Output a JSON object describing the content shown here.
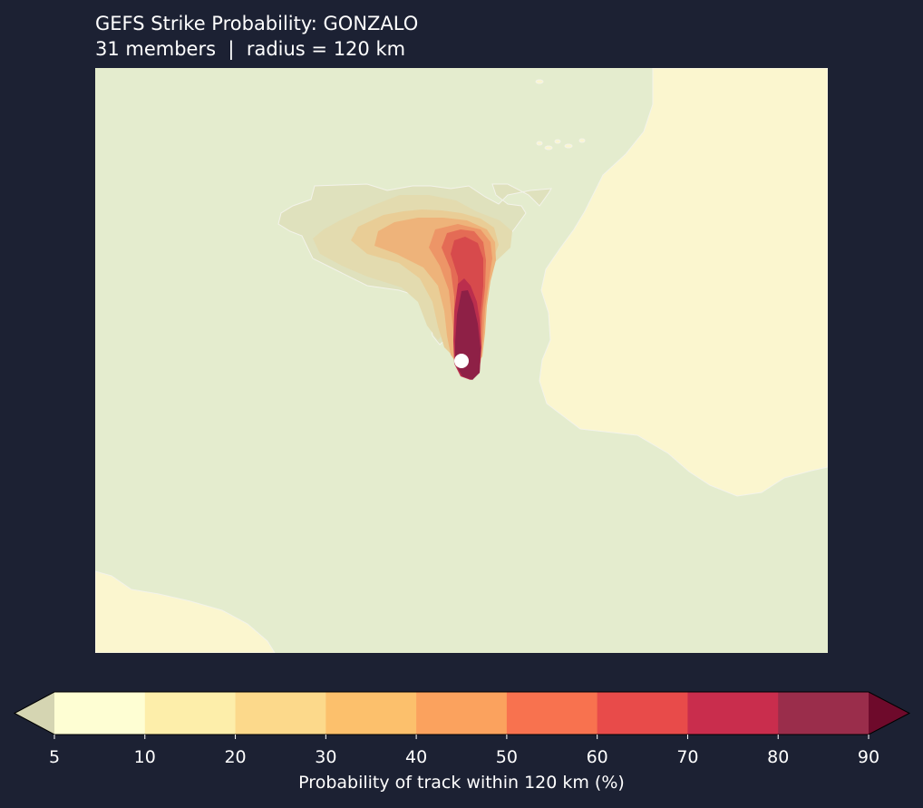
{
  "title": "GEFS Strike Probability: GONZALO",
  "subtitle": "31 members  |  radius = 120 km",
  "colorbar": {
    "label": "Probability of track within 120 km (%)",
    "ticks": [
      "5",
      "10",
      "20",
      "30",
      "40",
      "50",
      "60",
      "70",
      "80",
      "90"
    ],
    "levels": [
      5,
      10,
      20,
      30,
      40,
      50,
      60,
      70,
      80,
      90
    ],
    "colors": [
      "#fefed3",
      "#fdeeaa",
      "#fcd98b",
      "#fcc06c",
      "#fba25e",
      "#f8724f",
      "#e84b4a",
      "#c92d4d",
      "#9a2d4b"
    ],
    "under_color": "#d5d5b2",
    "over_color": "#6e0a2b",
    "extend": "both"
  },
  "map": {
    "ocean_color": "#e4ecce",
    "land_color": "#fbf6cf",
    "coastline_color": "#f3f3ea",
    "storm_marker_color": "#ffffff"
  }
}
